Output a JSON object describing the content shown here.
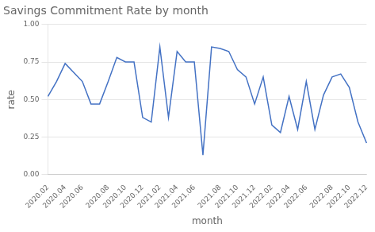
{
  "chart_data": {
    "type": "line",
    "title": "Savings Commitment Rate by month",
    "x_label": "month",
    "y_label": "rate",
    "categories": [
      "2020.02",
      null,
      "2020.04",
      null,
      "2020.06",
      null,
      null,
      "2020.08",
      null,
      "2020.10",
      null,
      "2020.12",
      null,
      "2021.02",
      null,
      "2021.04",
      null,
      "2021.06",
      null,
      null,
      "2021.08",
      null,
      "2021.10",
      null,
      "2021.12",
      null,
      "2022.02",
      null,
      "2022.04",
      null,
      "2022.06",
      null,
      null,
      "2022.08",
      null,
      "2022.10",
      null,
      "2022.12"
    ],
    "values": [
      0.52,
      0.62,
      0.74,
      0.68,
      0.62,
      0.47,
      0.47,
      0.62,
      0.78,
      0.75,
      0.75,
      0.38,
      0.35,
      0.85,
      0.38,
      0.82,
      0.75,
      0.75,
      0.13,
      0.85,
      0.84,
      0.82,
      0.7,
      0.65,
      0.47,
      0.65,
      0.33,
      0.28,
      0.52,
      0.3,
      0.62,
      0.3,
      0.53,
      0.65,
      0.67,
      0.58,
      0.35,
      0.21
    ],
    "color": "#4472C4",
    "ylim": [
      0.0,
      1.0
    ],
    "yticks": [
      {
        "value": 0,
        "label": "0.00"
      },
      0.25,
      {
        "value": 0.5,
        "label": "0.50"
      },
      0.75,
      {
        "value": 1,
        "label": "1.00"
      }
    ],
    "grid": "y"
  }
}
